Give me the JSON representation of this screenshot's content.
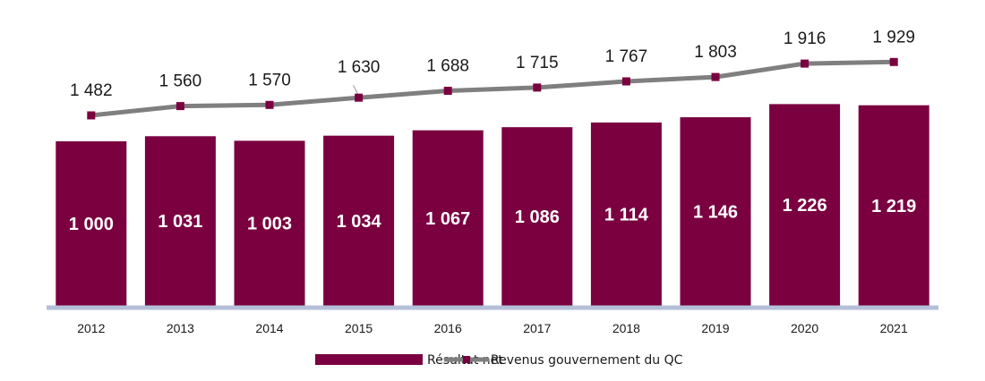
{
  "chart_data": {
    "type": "bar",
    "categories": [
      "2012",
      "2013",
      "2014",
      "2015",
      "2016",
      "2017",
      "2018",
      "2019",
      "2020",
      "2021"
    ],
    "series": [
      {
        "name": "Résultat net",
        "type": "bar",
        "values": [
          1000,
          1031,
          1003,
          1034,
          1067,
          1086,
          1114,
          1146,
          1226,
          1219
        ],
        "labels": [
          "1 000",
          "1 031",
          "1 003",
          "1 034",
          "1 067",
          "1 086",
          "1 114",
          "1 146",
          "1 226",
          "1 219"
        ],
        "color": "#7a0040"
      },
      {
        "name": "Revenus gouvernement du QC",
        "type": "line",
        "values": [
          1482,
          1560,
          1570,
          1630,
          1688,
          1715,
          1767,
          1803,
          1916,
          1929
        ],
        "labels": [
          "1 482",
          "1 560",
          "1 570",
          "1 630",
          "1 688",
          "1 715",
          "1 767",
          "1 803",
          "1 916",
          "1 929"
        ],
        "color": "#7f7f7f",
        "marker_color": "#7a0040"
      }
    ],
    "title": "",
    "xlabel": "",
    "ylabel": "",
    "grid": false,
    "legend_position": "bottom",
    "axis_color": "#b4bfd9"
  }
}
